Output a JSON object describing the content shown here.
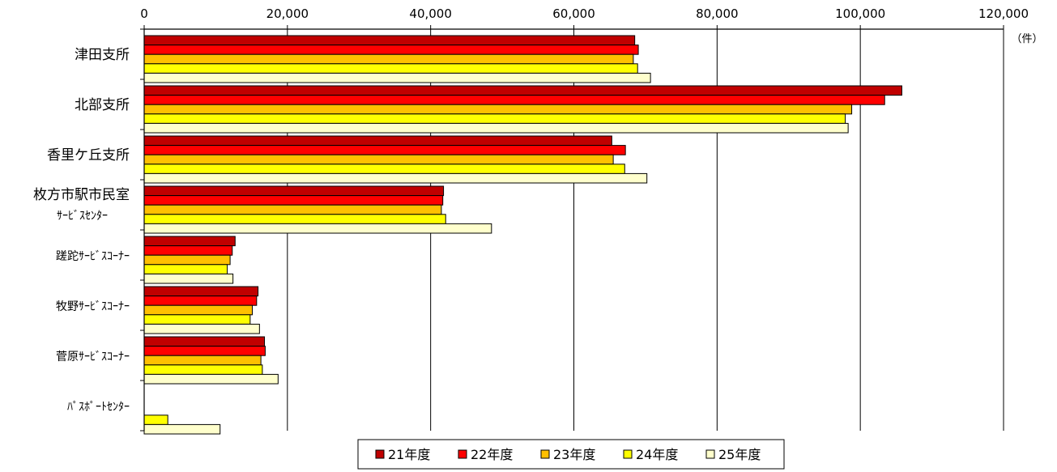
{
  "chart_data": {
    "type": "bar",
    "orientation": "horizontal",
    "title": "",
    "xlabel": "",
    "ylabel": "",
    "unit": "（件）",
    "xlim": [
      0,
      120000
    ],
    "x_ticks": [
      "0",
      "20,000",
      "40,000",
      "60,000",
      "80,000",
      "100,000",
      "120,000"
    ],
    "x_tick_values": [
      0,
      20000,
      40000,
      60000,
      80000,
      100000,
      120000
    ],
    "grid": true,
    "legend_position": "bottom",
    "categories": [
      [
        "津田支所"
      ],
      [
        "北部支所"
      ],
      [
        "香里ケ丘支所"
      ],
      [
        "枚方市駅市民室",
        "ｻｰﾋﾞｽｾﾝﾀｰ"
      ],
      [
        "蹉跎ｻｰﾋﾞｽｺｰﾅｰ"
      ],
      [
        "牧野ｻｰﾋﾞｽｺｰﾅｰ"
      ],
      [
        "菅原ｻｰﾋﾞｽｺｰﾅｰ"
      ],
      [
        "ﾊﾟｽﾎﾟｰﾄｾﾝﾀｰ"
      ]
    ],
    "series": [
      {
        "name": "21年度",
        "color": "#c00000",
        "values": [
          68500,
          105800,
          65300,
          41800,
          12700,
          15900,
          16800,
          0
        ]
      },
      {
        "name": "22年度",
        "color": "#ff0000",
        "values": [
          69000,
          103400,
          67200,
          41700,
          12300,
          15700,
          16900,
          0
        ]
      },
      {
        "name": "23年度",
        "color": "#ffc000",
        "values": [
          68300,
          98800,
          65500,
          41500,
          12000,
          15100,
          16300,
          0
        ]
      },
      {
        "name": "24年度",
        "color": "#ffff00",
        "values": [
          68900,
          97900,
          67100,
          42100,
          11600,
          14800,
          16500,
          3300
        ]
      },
      {
        "name": "25年度",
        "color": "#ffffcc",
        "values": [
          70700,
          98300,
          70200,
          48500,
          12400,
          16100,
          18700,
          10600
        ]
      }
    ]
  }
}
